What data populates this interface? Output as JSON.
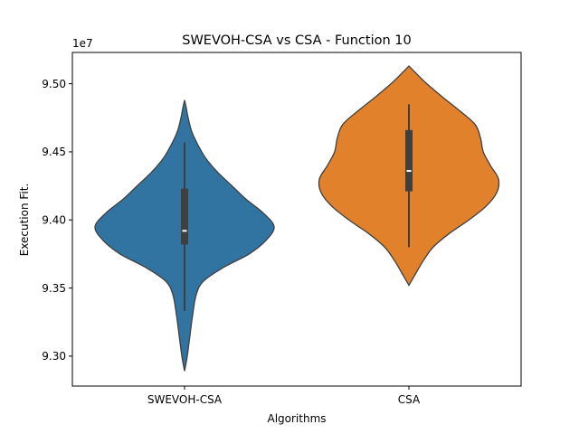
{
  "chart_data": {
    "type": "violin",
    "title": "SWEVOH-CSA vs CSA - Function 10",
    "xlabel": "Algorithms",
    "ylabel": "Execution Fit.",
    "y_offset_label": "1e7",
    "y_scale": 10000000,
    "ylim": [
      9.278,
      9.523
    ],
    "yticks": [
      9.3,
      9.35,
      9.4,
      9.45,
      9.5
    ],
    "ytick_labels": [
      "9.30",
      "9.35",
      "9.40",
      "9.45",
      "9.50"
    ],
    "categories": [
      "SWEVOH-CSA",
      "CSA"
    ],
    "grid": false,
    "violins": [
      {
        "name": "SWEVOH-CSA",
        "color": "#3274a1",
        "min": 9.289,
        "max": 9.488,
        "whisker_low": 9.333,
        "whisker_high": 9.457,
        "q1": 9.382,
        "median": 9.392,
        "q3": 9.423,
        "profile": [
          [
            9.289,
            0.0
          ],
          [
            9.3,
            0.03
          ],
          [
            9.315,
            0.06
          ],
          [
            9.33,
            0.09
          ],
          [
            9.345,
            0.13
          ],
          [
            9.355,
            0.21
          ],
          [
            9.365,
            0.43
          ],
          [
            9.375,
            0.72
          ],
          [
            9.385,
            0.91
          ],
          [
            9.395,
            1.0
          ],
          [
            9.405,
            0.88
          ],
          [
            9.415,
            0.69
          ],
          [
            9.425,
            0.53
          ],
          [
            9.435,
            0.37
          ],
          [
            9.445,
            0.24
          ],
          [
            9.455,
            0.15
          ],
          [
            9.465,
            0.08
          ],
          [
            9.475,
            0.04
          ],
          [
            9.482,
            0.02
          ],
          [
            9.488,
            0.0
          ]
        ]
      },
      {
        "name": "CSA",
        "color": "#e1812c",
        "min": 9.352,
        "max": 9.513,
        "whisker_low": 9.38,
        "whisker_high": 9.485,
        "q1": 9.421,
        "median": 9.436,
        "q3": 9.466,
        "profile": [
          [
            9.352,
            0.0
          ],
          [
            9.36,
            0.07
          ],
          [
            9.37,
            0.16
          ],
          [
            9.38,
            0.27
          ],
          [
            9.39,
            0.45
          ],
          [
            9.4,
            0.67
          ],
          [
            9.41,
            0.86
          ],
          [
            9.42,
            0.98
          ],
          [
            9.43,
            1.0
          ],
          [
            9.44,
            0.91
          ],
          [
            9.45,
            0.83
          ],
          [
            9.46,
            0.8
          ],
          [
            9.47,
            0.74
          ],
          [
            9.48,
            0.57
          ],
          [
            9.49,
            0.38
          ],
          [
            9.5,
            0.2
          ],
          [
            9.507,
            0.09
          ],
          [
            9.513,
            0.0
          ]
        ]
      }
    ]
  }
}
